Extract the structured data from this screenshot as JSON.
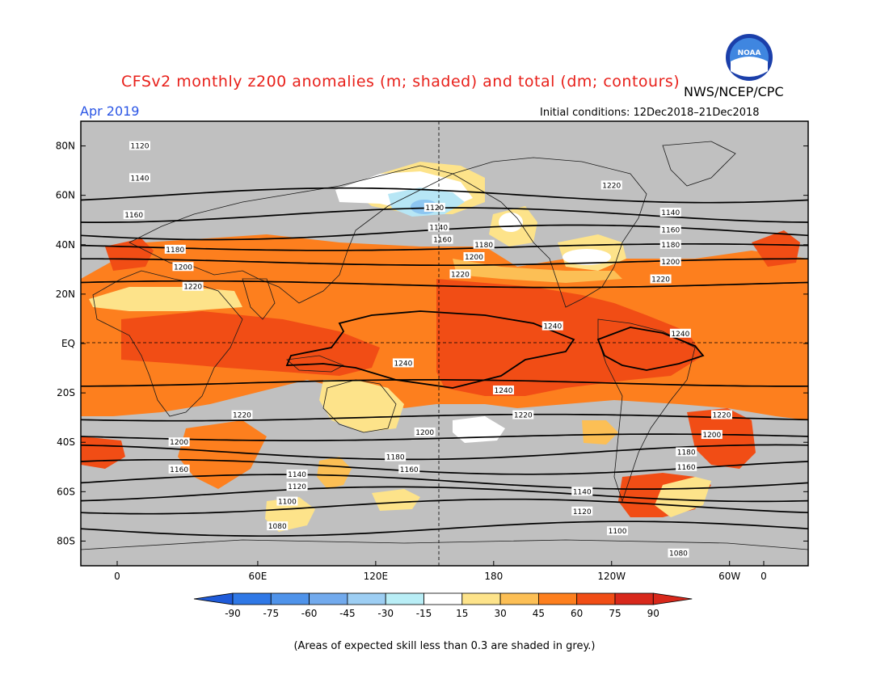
{
  "title": "CFSv2 monthly z200 anomalies (m; shaded) and total (dm; contours)",
  "agency": "NWS/NCEP/CPC",
  "logo_text": "NOAA",
  "month": "Apr 2019",
  "initial_conditions": "Initial conditions: 12Dec2018–21Dec2018",
  "footnote": "(Areas of expected skill less than 0.3 are shaded in grey.)",
  "colors": {
    "grey": "#c0c0c0",
    "c15_30": "#fde38a",
    "c30_45": "#fcbf55",
    "c45_60": "#fd7f1e",
    "c60_75": "#f14d15",
    "c75_90": "#d8281b",
    "neg15": "#ffffff",
    "neg30": "#b7e6f5",
    "neg45": "#8dc6f1"
  },
  "lat_labels": [
    "80N",
    "60N",
    "40N",
    "20N",
    "EQ",
    "20S",
    "40S",
    "60S",
    "80S"
  ],
  "lon_labels": [
    "0",
    "60E",
    "120E",
    "180",
    "120W",
    "60W",
    "0"
  ],
  "colorbar": {
    "labels": [
      "-90",
      "-75",
      "-60",
      "-45",
      "-30",
      "-15",
      "15",
      "30",
      "45",
      "60",
      "75",
      "90"
    ],
    "colors": [
      "#1f5bd9",
      "#2f78e6",
      "#4f93ea",
      "#72aaed",
      "#9dcef3",
      "#b9eef6",
      "#ffffff",
      "#fde38a",
      "#fcbf55",
      "#fd7f1e",
      "#f14d15",
      "#d8281b"
    ]
  },
  "contours": [
    {
      "value": "1080",
      "lat": -75
    },
    {
      "value": "1100",
      "lat": -66
    },
    {
      "value": "1120",
      "lat": -61
    },
    {
      "value": "1140",
      "lat": -56
    },
    {
      "value": "1160",
      "lat": -50
    },
    {
      "value": "1180",
      "lat": -44
    },
    {
      "value": "1200",
      "lat": -38
    },
    {
      "value": "1220",
      "lat": -30
    },
    {
      "value": "1240",
      "lat": -16
    },
    {
      "value": "1240",
      "lat": 8
    },
    {
      "value": "1220",
      "lat": 24
    },
    {
      "value": "1200",
      "lat": 33
    },
    {
      "value": "1180",
      "lat": 39
    },
    {
      "value": "1160",
      "lat": 45
    },
    {
      "value": "1140",
      "lat": 52
    },
    {
      "value": "1120",
      "lat": 60
    }
  ],
  "contour_labels": [
    {
      "text": "1120",
      "lon": 0,
      "lat": 80
    },
    {
      "text": "1140",
      "lon": 0,
      "lat": 67
    },
    {
      "text": "1160",
      "lon": -3,
      "lat": 52
    },
    {
      "text": "1180",
      "lon": 18,
      "lat": 38
    },
    {
      "text": "1200",
      "lon": 22,
      "lat": 31
    },
    {
      "text": "1220",
      "lon": 27,
      "lat": 23
    },
    {
      "text": "1120",
      "lon": 150,
      "lat": 55
    },
    {
      "text": "1140",
      "lon": 152,
      "lat": 47
    },
    {
      "text": "1160",
      "lon": 154,
      "lat": 42
    },
    {
      "text": "1180",
      "lon": 175,
      "lat": 40
    },
    {
      "text": "1200",
      "lon": 170,
      "lat": 35
    },
    {
      "text": "1220",
      "lon": 163,
      "lat": 28
    },
    {
      "text": "1240",
      "lon": 210,
      "lat": 7
    },
    {
      "text": "1240",
      "lon": 134,
      "lat": -8
    },
    {
      "text": "1240",
      "lon": 185,
      "lat": -19
    },
    {
      "text": "1220",
      "lon": 240,
      "lat": 64
    },
    {
      "text": "1140",
      "lon": 270,
      "lat": 53
    },
    {
      "text": "1160",
      "lon": 270,
      "lat": 46
    },
    {
      "text": "1180",
      "lon": 270,
      "lat": 40
    },
    {
      "text": "1200",
      "lon": 270,
      "lat": 33
    },
    {
      "text": "1220",
      "lon": 265,
      "lat": 26
    },
    {
      "text": "1240",
      "lon": 275,
      "lat": 4
    },
    {
      "text": "1220",
      "lon": 52,
      "lat": -29
    },
    {
      "text": "1220",
      "lon": 195,
      "lat": -29
    },
    {
      "text": "1220",
      "lon": 296,
      "lat": -29
    },
    {
      "text": "1200",
      "lon": 20,
      "lat": -40
    },
    {
      "text": "1200",
      "lon": 145,
      "lat": -36
    },
    {
      "text": "1200",
      "lon": 291,
      "lat": -37
    },
    {
      "text": "1180",
      "lon": 130,
      "lat": -46
    },
    {
      "text": "1180",
      "lon": 278,
      "lat": -44
    },
    {
      "text": "1160",
      "lon": 20,
      "lat": -51
    },
    {
      "text": "1160",
      "lon": 137,
      "lat": -51
    },
    {
      "text": "1160",
      "lon": 278,
      "lat": -50
    },
    {
      "text": "1140",
      "lon": 80,
      "lat": -53
    },
    {
      "text": "1140",
      "lon": 225,
      "lat": -60
    },
    {
      "text": "1120",
      "lon": 80,
      "lat": -58
    },
    {
      "text": "1120",
      "lon": 225,
      "lat": -68
    },
    {
      "text": "1100",
      "lon": 75,
      "lat": -64
    },
    {
      "text": "1100",
      "lon": 243,
      "lat": -76
    },
    {
      "text": "1080",
      "lon": 70,
      "lat": -74
    },
    {
      "text": "1080",
      "lon": 274,
      "lat": -85
    }
  ]
}
